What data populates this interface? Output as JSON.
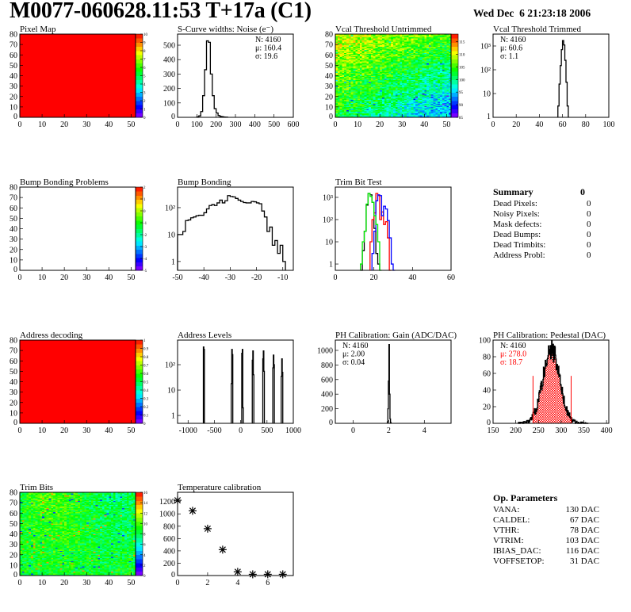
{
  "header": {
    "title": "M0077-060628.11:53 T+17a (C1)",
    "date": "Wed Dec  6 21:23:18 2006"
  },
  "palette": {
    "low": "#7f00ff",
    "mid": "#00ff00",
    "high": "#ff0000"
  },
  "summary": {
    "title": "Summary",
    "total": "0",
    "rows": [
      {
        "label": "Dead Pixels:",
        "value": "0"
      },
      {
        "label": "Noisy Pixels:",
        "value": "0"
      },
      {
        "label": "Mask defects:",
        "value": "0"
      },
      {
        "label": "Dead Bumps:",
        "value": "0"
      },
      {
        "label": "Dead Trimbits:",
        "value": "0"
      },
      {
        "label": "Address Probl:",
        "value": "0"
      }
    ]
  },
  "op_parameters": {
    "title": "Op. Parameters",
    "rows": [
      {
        "label": "VANA:",
        "value": "130 DAC"
      },
      {
        "label": "CALDEL:",
        "value": "67 DAC"
      },
      {
        "label": "VTHR:",
        "value": "78 DAC"
      },
      {
        "label": "VTRIM:",
        "value": "103 DAC"
      },
      {
        "label": "IBIAS_DAC:",
        "value": "116 DAC"
      },
      {
        "label": "VOFFSETOP:",
        "value": "31 DAC"
      }
    ]
  },
  "chart_data": [
    {
      "id": "pixel-map",
      "title": "Pixel Map",
      "type": "heatmap",
      "xlim": [
        0,
        52
      ],
      "ylim": [
        0,
        80
      ],
      "zlim": [
        0,
        10
      ],
      "uniform_value": 10,
      "xticks": [
        0,
        10,
        20,
        30,
        40,
        50
      ],
      "yticks": [
        0,
        10,
        20,
        30,
        40,
        50,
        60,
        70,
        80
      ],
      "zticks": [
        0,
        1,
        2,
        3,
        4,
        5,
        6,
        7,
        8,
        9,
        10
      ]
    },
    {
      "id": "s-curve-noise",
      "title": "S-Curve widths: Noise (e⁻)",
      "type": "bar",
      "xlim": [
        0,
        600
      ],
      "ylim": [
        0,
        577
      ],
      "xticks": [
        0,
        100,
        200,
        300,
        400,
        500,
        600
      ],
      "yticks": [
        0,
        100,
        200,
        300,
        400,
        500
      ],
      "bin_width": 10,
      "series": [
        {
          "color": "#000000",
          "bins": [
            [
              100,
              3
            ],
            [
              110,
              10
            ],
            [
              120,
              40
            ],
            [
              130,
              150
            ],
            [
              140,
              330
            ],
            [
              150,
              530
            ],
            [
              160,
              520
            ],
            [
              170,
              300
            ],
            [
              180,
              150
            ],
            [
              190,
              60
            ],
            [
              200,
              30
            ],
            [
              210,
              12
            ],
            [
              220,
              6
            ],
            [
              230,
              4
            ],
            [
              240,
              2
            ],
            [
              250,
              1
            ]
          ]
        }
      ],
      "stats": [
        "N: 4160",
        "μ: 160.4",
        "σ: 19.6"
      ],
      "stats_pos": "right"
    },
    {
      "id": "vcal-untrimmed",
      "title": "Vcal Threshold Untrimmed",
      "type": "heatmap",
      "xlim": [
        0,
        52
      ],
      "ylim": [
        0,
        80
      ],
      "zlim": [
        85,
        118
      ],
      "xticks": [
        0,
        10,
        20,
        30,
        40,
        50
      ],
      "yticks": [
        0,
        10,
        20,
        30,
        40,
        50,
        60,
        70,
        80
      ],
      "zticks": [
        85,
        90,
        95,
        100,
        105,
        110,
        115
      ]
    },
    {
      "id": "vcal-trimmed",
      "title": "Vcal Threshold Trimmed",
      "type": "bar",
      "log_y": true,
      "xlim": [
        0,
        100
      ],
      "ylim": [
        1,
        3162
      ],
      "xticks": [
        0,
        20,
        40,
        60,
        80,
        100
      ],
      "yticks": [
        1,
        10,
        100,
        1000
      ],
      "yticklabels": [
        "1",
        "10",
        "10²",
        "10³"
      ],
      "bin_width": 1,
      "series": [
        {
          "color": "#000000",
          "bins": [
            [
              56,
              3
            ],
            [
              57,
              25
            ],
            [
              58,
              150
            ],
            [
              59,
              700
            ],
            [
              60,
              1700
            ],
            [
              61,
              1100
            ],
            [
              62,
              250
            ],
            [
              63,
              30
            ],
            [
              64,
              3
            ]
          ]
        }
      ],
      "stats": [
        "N: 4160",
        "μ: 60.6",
        "σ:  1.1"
      ],
      "stats_pos": "left"
    },
    {
      "id": "bump-bonding-problems",
      "title": "Bump Bonding Problems",
      "type": "heatmap",
      "xlim": [
        0,
        52
      ],
      "ylim": [
        0,
        80
      ],
      "zlim": [
        -5,
        2
      ],
      "empty": true,
      "xticks": [
        0,
        10,
        20,
        30,
        40,
        50
      ],
      "yticks": [
        0,
        10,
        20,
        30,
        40,
        50,
        60,
        70,
        80
      ],
      "zticks": [
        -5,
        -4,
        -3,
        -2,
        -1,
        0,
        1,
        2
      ]
    },
    {
      "id": "bump-bonding",
      "title": "Bump Bonding",
      "type": "bar",
      "log_y": true,
      "xlim": [
        -50,
        -6
      ],
      "ylim": [
        0.47,
        580
      ],
      "xticks": [
        -50,
        -40,
        -30,
        -20,
        -10
      ],
      "yticks": [
        1,
        10,
        100
      ],
      "yticklabels": [
        "1",
        "10",
        "10²"
      ],
      "bin_width": 1,
      "series": [
        {
          "color": "#000000",
          "bins": [
            [
              -50,
              10
            ],
            [
              -49,
              10
            ],
            [
              -48,
              13
            ],
            [
              -47,
              33
            ],
            [
              -46,
              35
            ],
            [
              -45,
              42
            ],
            [
              -44,
              45
            ],
            [
              -43,
              50
            ],
            [
              -42,
              52
            ],
            [
              -41,
              52
            ],
            [
              -40,
              65
            ],
            [
              -39,
              90
            ],
            [
              -38,
              120
            ],
            [
              -37,
              130
            ],
            [
              -36,
              120
            ],
            [
              -35,
              150
            ],
            [
              -34,
              190
            ],
            [
              -33,
              150
            ],
            [
              -32,
              180
            ],
            [
              -31,
              280
            ],
            [
              -30,
              260
            ],
            [
              -29,
              250
            ],
            [
              -28,
              220
            ],
            [
              -27,
              190
            ],
            [
              -26,
              170
            ],
            [
              -25,
              155
            ],
            [
              -24,
              150
            ],
            [
              -23,
              150
            ],
            [
              -22,
              170
            ],
            [
              -21,
              165
            ],
            [
              -20,
              150
            ],
            [
              -19,
              140
            ],
            [
              -18,
              75
            ],
            [
              -17,
              45
            ],
            [
              -16,
              13
            ],
            [
              -15,
              19
            ],
            [
              -14,
              4
            ],
            [
              -13,
              6
            ],
            [
              -12,
              2
            ],
            [
              -11,
              4
            ],
            [
              -10,
              1
            ]
          ]
        }
      ]
    },
    {
      "id": "trim-bit-test",
      "title": "Trim Bit Test",
      "type": "bar",
      "log_y": true,
      "xlim": [
        0,
        60
      ],
      "ylim": [
        0.52,
        2900
      ],
      "xticks": [
        0,
        20,
        40,
        60
      ],
      "yticks": [
        1,
        10,
        100,
        1000
      ],
      "yticklabels": [
        "1",
        "10",
        "10²",
        "10³"
      ],
      "bin_width": 1,
      "series": [
        {
          "color": "#000000",
          "bins": [
            [
              13,
              0.5
            ],
            [
              14,
              4
            ],
            [
              15,
              30
            ],
            [
              16,
              450
            ],
            [
              17,
              1500
            ],
            [
              18,
              1300
            ],
            [
              19,
              600
            ],
            [
              20,
              40
            ],
            [
              21,
              3
            ],
            [
              22,
              1
            ]
          ]
        },
        {
          "color": "#ff0000",
          "bins": [
            [
              18,
              10
            ],
            [
              19,
              100
            ],
            [
              20,
              200
            ],
            [
              21,
              1500
            ],
            [
              22,
              1200
            ],
            [
              23,
              100
            ],
            [
              24,
              220
            ],
            [
              25,
              60
            ],
            [
              26,
              80
            ],
            [
              27,
              15
            ],
            [
              28,
              0.5
            ]
          ]
        },
        {
          "color": "#0000ff",
          "bins": [
            [
              19,
              3
            ],
            [
              20,
              30
            ],
            [
              21,
              700
            ],
            [
              22,
              1300
            ],
            [
              23,
              1200
            ],
            [
              24,
              150
            ],
            [
              25,
              400
            ],
            [
              26,
              300
            ],
            [
              27,
              90
            ],
            [
              28,
              15
            ],
            [
              29,
              1
            ],
            [
              30,
              0.5
            ]
          ]
        },
        {
          "color": "#00ee00",
          "bins": [
            [
              13,
              1
            ],
            [
              14,
              10
            ],
            [
              15,
              30
            ],
            [
              16,
              500
            ],
            [
              17,
              1500
            ],
            [
              18,
              1100
            ],
            [
              19,
              600
            ],
            [
              20,
              150
            ],
            [
              21,
              60
            ],
            [
              22,
              10
            ],
            [
              23,
              0.5
            ]
          ]
        }
      ]
    },
    {
      "id": "address-decoding",
      "title": "Address decoding",
      "type": "heatmap",
      "xlim": [
        0,
        52
      ],
      "ylim": [
        0,
        80
      ],
      "zlim": [
        0,
        1
      ],
      "uniform_value": 1,
      "xticks": [
        0,
        10,
        20,
        30,
        40,
        50
      ],
      "yticks": [
        0,
        10,
        20,
        30,
        40,
        50,
        60,
        70,
        80
      ],
      "zticks": [
        0,
        0.1,
        0.2,
        0.3,
        0.4,
        0.5,
        0.6,
        0.7,
        0.8,
        0.9,
        1
      ]
    },
    {
      "id": "address-levels",
      "title": "Address Levels",
      "type": "bar",
      "log_y": true,
      "xlim": [
        -1200,
        1000
      ],
      "ylim": [
        0.49,
        930
      ],
      "xticks": [
        -1000,
        -500,
        0,
        500,
        1000
      ],
      "yticks": [
        1,
        10,
        100
      ],
      "yticklabels": [
        "1",
        "10",
        "10²"
      ],
      "bin_width": 10,
      "series": [
        {
          "color": "#000000",
          "bins": [
            [
              -710,
              500
            ],
            [
              -700,
              400
            ],
            [
              -180,
              18
            ],
            [
              -170,
              400
            ],
            [
              -160,
              250
            ],
            [
              20,
              280
            ],
            [
              30,
              400
            ],
            [
              40,
              2
            ],
            [
              220,
              150
            ],
            [
              230,
              350
            ],
            [
              240,
              40
            ],
            [
              420,
              170
            ],
            [
              430,
              350
            ],
            [
              440,
              55
            ],
            [
              610,
              75
            ],
            [
              620,
              240
            ],
            [
              630,
              100
            ],
            [
              770,
              35
            ],
            [
              780,
              170
            ],
            [
              790,
              50
            ]
          ]
        }
      ]
    },
    {
      "id": "ph-gain",
      "title": "PH Calibration: Gain (ADC/DAC)",
      "type": "bar",
      "xlim": [
        -1,
        5.5
      ],
      "ylim": [
        0,
        1141
      ],
      "xticks": [
        0,
        2,
        4
      ],
      "yticks": [
        0,
        200,
        400,
        600,
        800,
        1000
      ],
      "bin_width": 0.03,
      "series": [
        {
          "color": "#000000",
          "bins": [
            [
              1.92,
              20
            ],
            [
              1.95,
              200
            ],
            [
              1.98,
              580
            ],
            [
              2.01,
              1080
            ],
            [
              2.04,
              400
            ],
            [
              2.07,
              60
            ],
            [
              2.1,
              10
            ]
          ]
        }
      ],
      "stats": [
        "N: 4160",
        "μ: 2.00",
        "σ: 0.04"
      ],
      "stats_pos": "left"
    },
    {
      "id": "ph-pedestal",
      "title": "PH Calibration: Pedestal (DAC)",
      "type": "gauss_hist",
      "xlim": [
        150,
        405
      ],
      "ylim": [
        0,
        100
      ],
      "xticks": [
        150,
        200,
        250,
        300,
        350,
        400
      ],
      "yticks": [
        0,
        20,
        40,
        60,
        80,
        100
      ],
      "N": 4160,
      "mean": 278.0,
      "sigma": 18.7,
      "bin_width": 1,
      "cut_lines": [
        238,
        322
      ],
      "fill_color": "#ff0000",
      "stats": [
        "N: 4160",
        "μ: 278.0",
        "σ: 18.7"
      ],
      "stats_colors": [
        "#000000",
        "#ff0000",
        "#ff0000"
      ],
      "stats_pos": "left"
    },
    {
      "id": "trim-bits",
      "title": "Trim Bits",
      "type": "heatmap",
      "xlim": [
        0,
        52
      ],
      "ylim": [
        0,
        80
      ],
      "zlim": [
        0,
        16
      ],
      "xticks": [
        0,
        10,
        20,
        30,
        40,
        50
      ],
      "yticks": [
        0,
        10,
        20,
        30,
        40,
        50,
        60,
        70,
        80
      ],
      "zticks": [
        0,
        2,
        4,
        6,
        8,
        10,
        12,
        14,
        16
      ]
    },
    {
      "id": "temperature-calibration",
      "title": "Temperature calibration",
      "type": "scatter",
      "xlim": [
        0,
        7.7
      ],
      "ylim": [
        0,
        1350
      ],
      "xticks": [
        0,
        2,
        4,
        6
      ],
      "yticks": [
        0,
        200,
        400,
        600,
        800,
        1000,
        1200
      ],
      "x": [
        0,
        1,
        2,
        3,
        4,
        5,
        6,
        7
      ],
      "y": [
        1220,
        1050,
        760,
        420,
        60,
        20,
        20,
        20
      ]
    }
  ]
}
